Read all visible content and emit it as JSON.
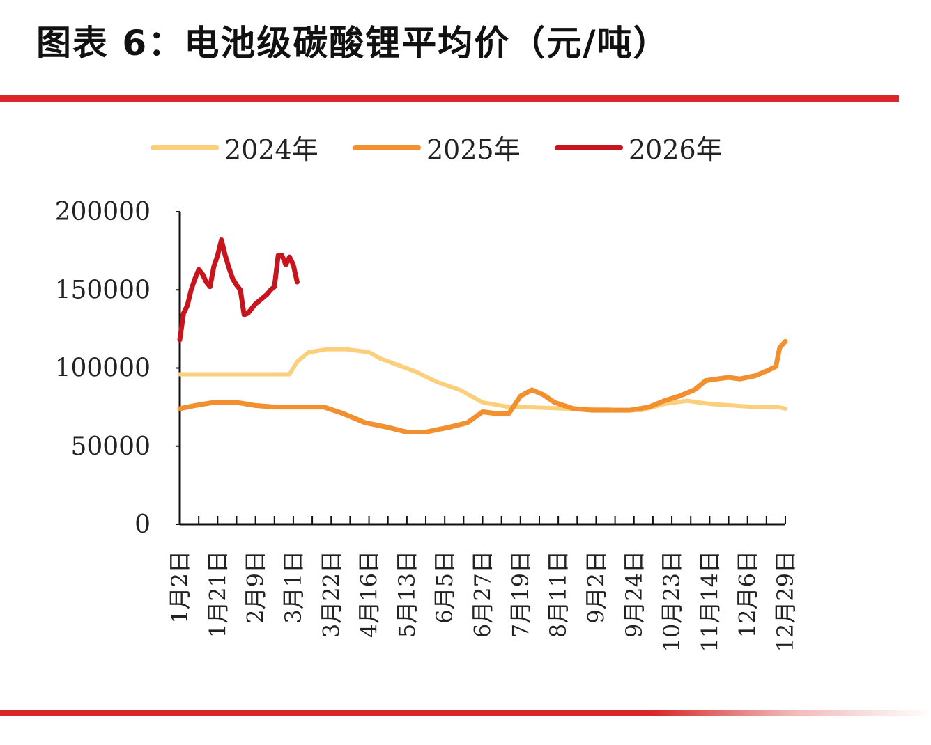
{
  "title": "图表 6：电池级碳酸锂平均价（元/吨）",
  "chart_data": {
    "type": "line",
    "title": "图表 6：电池级碳酸锂平均价（元/吨）",
    "ylim": [
      0,
      200000
    ],
    "yticks": [
      "0",
      "50000",
      "100000",
      "150000",
      "200000"
    ],
    "categories": [
      "1月2日",
      "1月21日",
      "2月9日",
      "3月1日",
      "3月22日",
      "4月16日",
      "5月13日",
      "6月5日",
      "6月27日",
      "7月19日",
      "8月11日",
      "9月2日",
      "9月24日",
      "10月23日",
      "11月14日",
      "12月6日",
      "12月29日"
    ],
    "legend_position": "top",
    "grid": false,
    "series": [
      {
        "name": "2024年",
        "color": "#fbcf7c",
        "x": [
          0,
          2.9,
          3.1,
          3.4,
          3.9,
          4.4,
          5.0,
          5.3,
          6.2,
          6.8,
          7.4,
          8.0,
          8.7,
          9.1,
          10.2,
          11.0,
          11.6,
          12.2,
          12.8,
          13.4,
          14.0,
          14.6,
          15.2,
          15.8,
          16.0
        ],
        "y": [
          96000,
          96000,
          104000,
          110000,
          112000,
          112000,
          110000,
          106000,
          98000,
          91000,
          86000,
          78000,
          75000,
          75000,
          74000,
          74000,
          73000,
          73000,
          77000,
          79000,
          77000,
          76000,
          75000,
          75000,
          74000
        ]
      },
      {
        "name": "2025年",
        "color": "#f2902f",
        "x": [
          0,
          0.4,
          0.9,
          1.5,
          2.0,
          2.5,
          3.0,
          3.8,
          4.3,
          4.9,
          5.5,
          6.0,
          6.5,
          7.1,
          7.6,
          8.0,
          8.3,
          8.7,
          9.0,
          9.3,
          9.6,
          9.9,
          10.4,
          10.9,
          11.4,
          11.9,
          12.4,
          12.8,
          13.2,
          13.6,
          13.9,
          14.2,
          14.5,
          14.8,
          15.2,
          15.5,
          15.75,
          15.85,
          16.0
        ],
        "y": [
          74000,
          76000,
          78000,
          78000,
          76000,
          75000,
          75000,
          75000,
          71000,
          65000,
          62000,
          59000,
          59000,
          62000,
          65000,
          72000,
          71000,
          71000,
          82000,
          86000,
          83000,
          78000,
          74000,
          73000,
          73000,
          73000,
          75000,
          79000,
          82000,
          86000,
          92000,
          93000,
          94000,
          93000,
          95000,
          98000,
          101000,
          113000,
          117000
        ]
      },
      {
        "name": "2026年",
        "color": "#c8141d",
        "x": [
          0,
          0.1,
          0.2,
          0.3,
          0.4,
          0.5,
          0.6,
          0.7,
          0.8,
          0.9,
          1.0,
          1.1,
          1.2,
          1.3,
          1.4,
          1.5,
          1.6,
          1.7,
          1.8,
          1.9,
          2.0,
          2.1,
          2.2,
          2.3,
          2.4,
          2.5,
          2.6,
          2.7,
          2.8,
          2.9,
          3.0,
          3.1
        ],
        "y": [
          118000,
          135000,
          140000,
          150000,
          157000,
          163000,
          160000,
          155000,
          152000,
          165000,
          172000,
          182000,
          172000,
          164000,
          157000,
          153000,
          150000,
          134000,
          135000,
          138000,
          141000,
          143000,
          145000,
          147000,
          150000,
          152000,
          172000,
          172000,
          166000,
          171000,
          166000,
          155000
        ]
      }
    ]
  }
}
